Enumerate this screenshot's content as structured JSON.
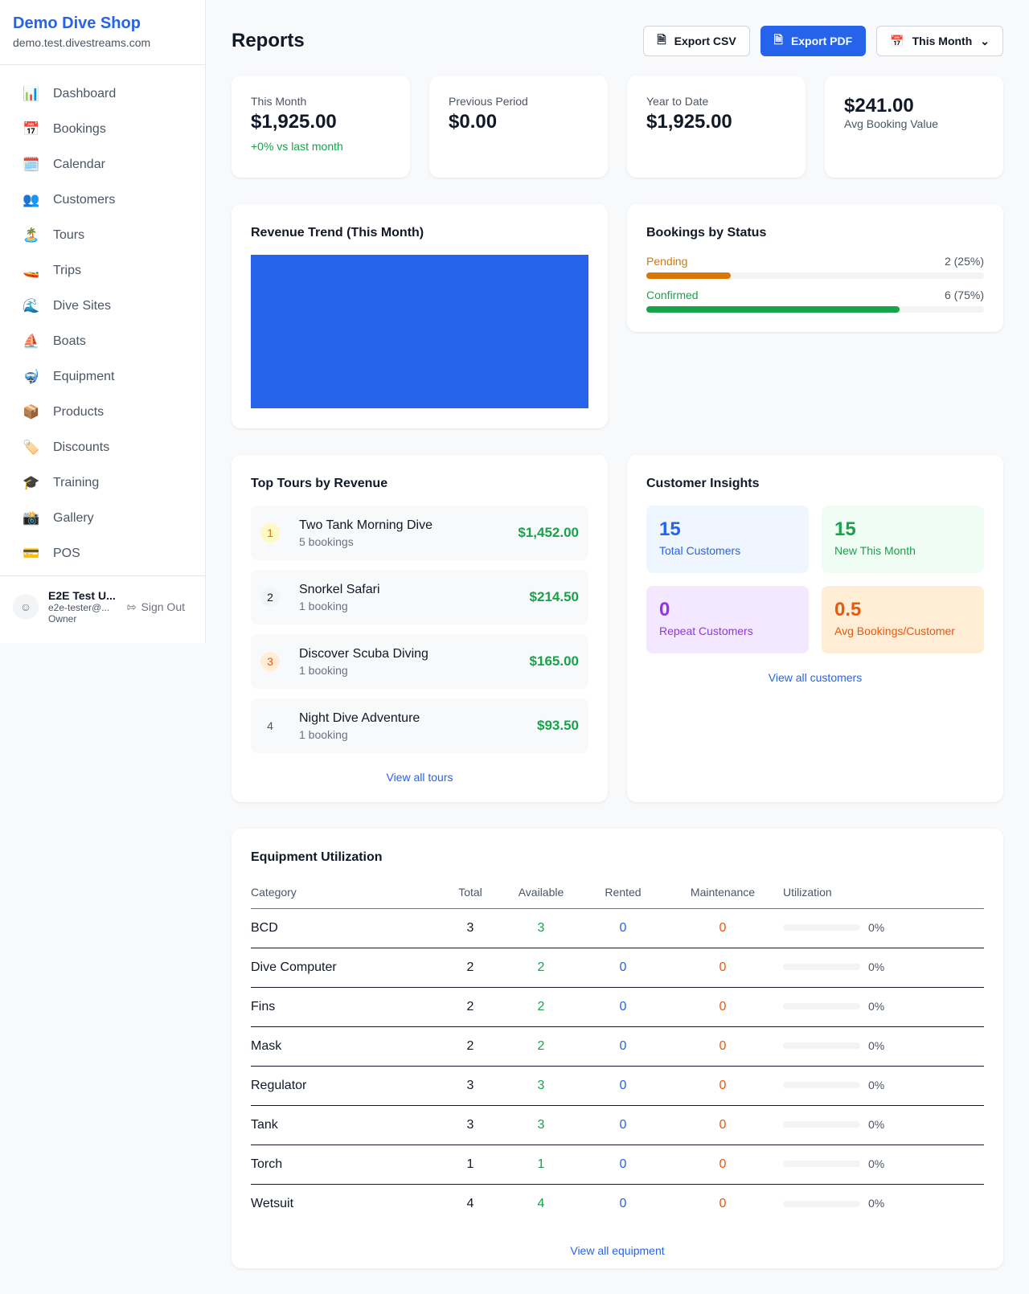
{
  "sidebar": {
    "brand": "Demo Dive Shop",
    "domain": "demo.test.divestreams.com",
    "items": [
      {
        "icon": "📊",
        "label": "Dashboard"
      },
      {
        "icon": "📅",
        "label": "Bookings"
      },
      {
        "icon": "🗓️",
        "label": "Calendar"
      },
      {
        "icon": "👥",
        "label": "Customers"
      },
      {
        "icon": "🏝️",
        "label": "Tours"
      },
      {
        "icon": "🚤",
        "label": "Trips"
      },
      {
        "icon": "🌊",
        "label": "Dive Sites"
      },
      {
        "icon": "⛵",
        "label": "Boats"
      },
      {
        "icon": "🤿",
        "label": "Equipment"
      },
      {
        "icon": "📦",
        "label": "Products"
      },
      {
        "icon": "🏷️",
        "label": "Discounts"
      },
      {
        "icon": "🎓",
        "label": "Training"
      },
      {
        "icon": "📸",
        "label": "Gallery"
      },
      {
        "icon": "💳",
        "label": "POS"
      }
    ],
    "user": {
      "name": "E2E Test U...",
      "email": "e2e-tester@...",
      "role": "Owner",
      "sign_out": "Sign Out"
    }
  },
  "header": {
    "title": "Reports",
    "export_csv": "Export CSV",
    "export_pdf": "Export PDF",
    "period": "This Month"
  },
  "stats": [
    {
      "label": "This Month",
      "value": "$1,925.00",
      "sub": "+0% vs last month"
    },
    {
      "label": "Previous Period",
      "value": "$0.00"
    },
    {
      "label": "Year to Date",
      "value": "$1,925.00"
    },
    {
      "value": "$241.00",
      "label": "Avg Booking Value"
    }
  ],
  "revenue_trend": {
    "title": "Revenue Trend (This Month)",
    "bar_color": "#2563eb"
  },
  "bookings_status": {
    "title": "Bookings by Status",
    "items": [
      {
        "label": "Pending",
        "count": "2 (25%)",
        "percent": 25,
        "color": "#d97706"
      },
      {
        "label": "Confirmed",
        "count": "6 (75%)",
        "percent": 75,
        "color": "#16a34a"
      }
    ]
  },
  "top_tours": {
    "title": "Top Tours by Revenue",
    "link": "View all tours",
    "items": [
      {
        "rank": "1",
        "name": "Two Tank Morning Dive",
        "bookings": "5 bookings",
        "revenue": "$1,452.00"
      },
      {
        "rank": "2",
        "name": "Snorkel Safari",
        "bookings": "1 booking",
        "revenue": "$214.50"
      },
      {
        "rank": "3",
        "name": "Discover Scuba Diving",
        "bookings": "1 booking",
        "revenue": "$165.00"
      },
      {
        "rank": "4",
        "name": "Night Dive Adventure",
        "bookings": "1 booking",
        "revenue": "$93.50"
      }
    ]
  },
  "customer_insights": {
    "title": "Customer Insights",
    "link": "View all customers",
    "items": [
      {
        "value": "15",
        "label": "Total Customers"
      },
      {
        "value": "15",
        "label": "New This Month"
      },
      {
        "value": "0",
        "label": "Repeat Customers"
      },
      {
        "value": "0.5",
        "label": "Avg Bookings/Customer"
      }
    ]
  },
  "equipment": {
    "title": "Equipment Utilization",
    "link": "View all equipment",
    "columns": [
      "Category",
      "Total",
      "Available",
      "Rented",
      "Maintenance",
      "Utilization"
    ],
    "rows": [
      {
        "category": "BCD",
        "total": "3",
        "available": "3",
        "rented": "0",
        "maintenance": "0",
        "utilization": "0%"
      },
      {
        "category": "Dive Computer",
        "total": "2",
        "available": "2",
        "rented": "0",
        "maintenance": "0",
        "utilization": "0%"
      },
      {
        "category": "Fins",
        "total": "2",
        "available": "2",
        "rented": "0",
        "maintenance": "0",
        "utilization": "0%"
      },
      {
        "category": "Mask",
        "total": "2",
        "available": "2",
        "rented": "0",
        "maintenance": "0",
        "utilization": "0%"
      },
      {
        "category": "Regulator",
        "total": "3",
        "available": "3",
        "rented": "0",
        "maintenance": "0",
        "utilization": "0%"
      },
      {
        "category": "Tank",
        "total": "3",
        "available": "3",
        "rented": "0",
        "maintenance": "0",
        "utilization": "0%"
      },
      {
        "category": "Torch",
        "total": "1",
        "available": "1",
        "rented": "0",
        "maintenance": "0",
        "utilization": "0%"
      },
      {
        "category": "Wetsuit",
        "total": "4",
        "available": "4",
        "rented": "0",
        "maintenance": "0",
        "utilization": "0%"
      }
    ]
  }
}
